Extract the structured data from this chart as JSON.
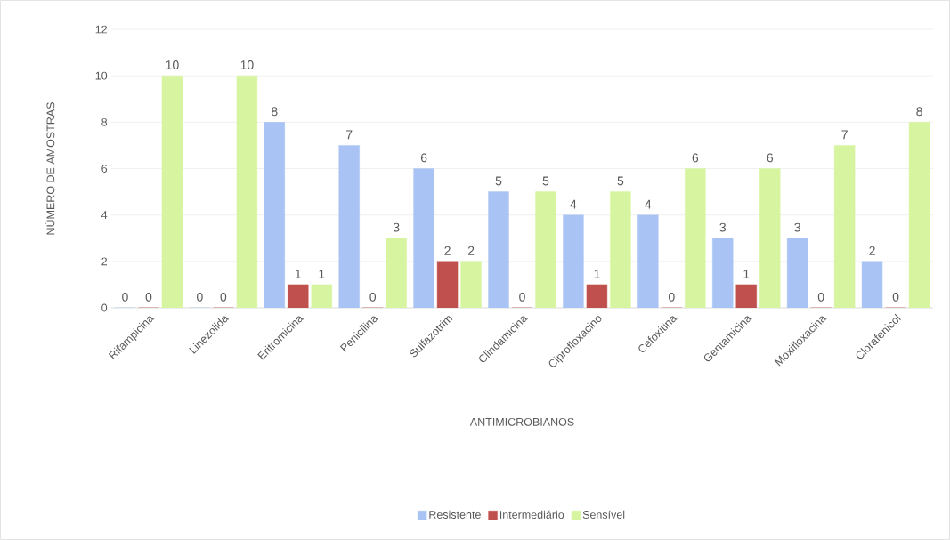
{
  "chart_data": {
    "type": "bar",
    "xlabel": "ANTIMICROBIANOS",
    "ylabel": "NÚMERO DE AMOSTRAS",
    "categories": [
      "Rifampicina",
      "Linezolida",
      "Eritromicina",
      "Penicilina",
      "Sulfazotrim",
      "Clindamicina",
      "Ciprofloxacino",
      "Cefoxitina",
      "Gentamicina",
      "Moxifloxacina",
      "Clorafenicol"
    ],
    "series": [
      {
        "name": "Resistente",
        "color": "#a9c4f4",
        "values": [
          0,
          0,
          8,
          7,
          6,
          5,
          4,
          4,
          3,
          3,
          2
        ]
      },
      {
        "name": "Intermediário",
        "color": "#c0504d",
        "values": [
          0,
          0,
          1,
          0,
          2,
          0,
          1,
          0,
          1,
          0,
          0
        ]
      },
      {
        "name": "Sensível",
        "color": "#d7f5a0",
        "values": [
          10,
          10,
          1,
          3,
          2,
          5,
          5,
          6,
          6,
          7,
          8
        ]
      }
    ],
    "ylim": [
      0,
      12
    ],
    "yticks": [
      0,
      2,
      4,
      6,
      8,
      10,
      12
    ],
    "grid": "y",
    "legend": "bottom",
    "data_labels": true
  }
}
